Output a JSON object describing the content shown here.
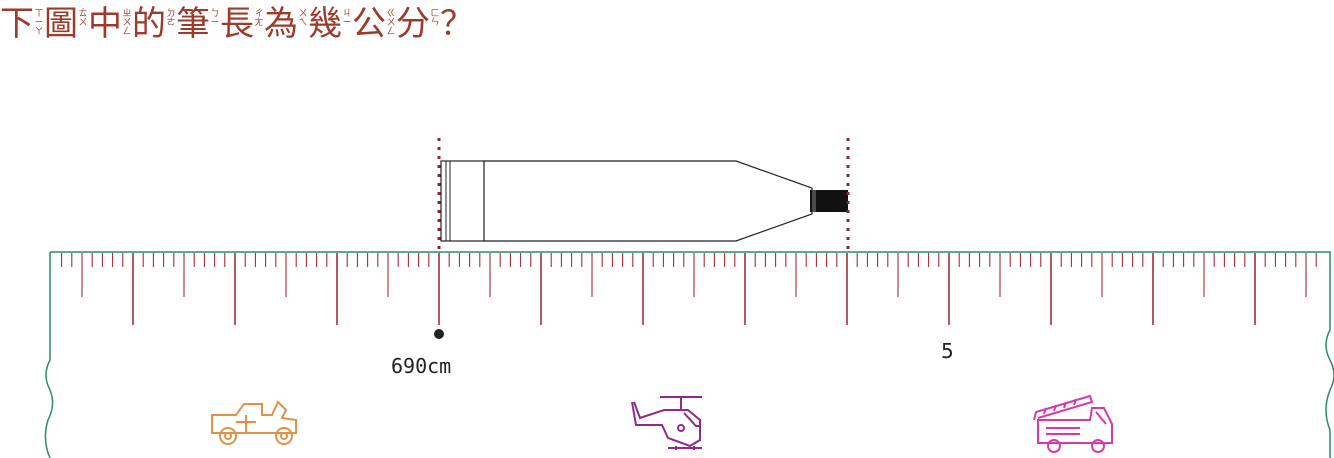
{
  "question": {
    "chars": [
      {
        "ch": "下",
        "bopo": [
          "ㄒ",
          "ㄧ",
          "ㄚ"
        ]
      },
      {
        "ch": "圖",
        "bopo": [
          "ㄊ",
          "ㄨ"
        ]
      },
      {
        "ch": "中",
        "bopo": [
          "ㄓ",
          "ㄨ",
          "ㄥ"
        ]
      },
      {
        "ch": "的",
        "bopo": [
          "ㄉ",
          "ㄜ"
        ]
      },
      {
        "ch": "筆",
        "bopo": [
          "ㄅ",
          "ㄧ"
        ]
      },
      {
        "ch": "長",
        "bopo": [
          "ㄔ",
          "ㄤ"
        ]
      },
      {
        "ch": "為",
        "bopo": [
          "ㄨ",
          "ㄟ"
        ]
      },
      {
        "ch": "幾",
        "bopo": [
          "ㄐ",
          "ㄧ"
        ]
      },
      {
        "ch": "公",
        "bopo": [
          "ㄍ",
          "ㄨ",
          "ㄥ"
        ]
      },
      {
        "ch": "分",
        "bopo": [
          "ㄈ",
          "ㄣ"
        ]
      },
      {
        "ch": "？",
        "bopo": []
      }
    ]
  },
  "ruler": {
    "label_start": "690cm",
    "label_end": "5",
    "tick_color": "#a0303c",
    "edge_color": "#2e8b6a",
    "icons": [
      {
        "name": "jeep-icon",
        "color": "#e0924a"
      },
      {
        "name": "helicopter-icon",
        "color": "#8e2a8e"
      },
      {
        "name": "fire-truck-icon",
        "color": "#d63aa8"
      }
    ]
  },
  "guide_color": "#8e2430"
}
